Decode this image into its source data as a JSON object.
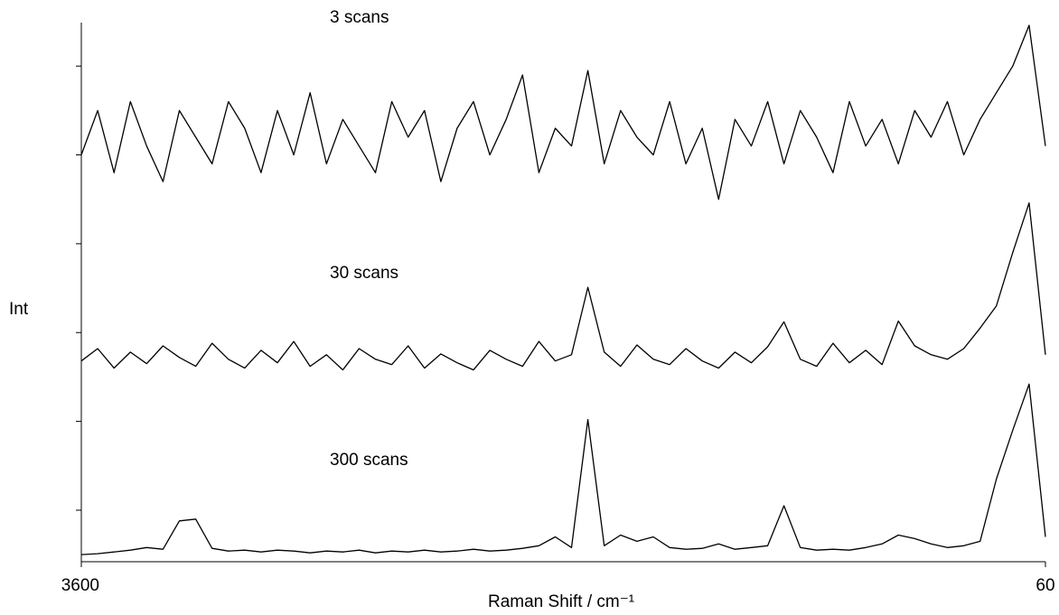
{
  "chart_data": {
    "type": "line",
    "xlabel": "Raman Shift / cm⁻¹",
    "ylabel": "Int",
    "xlim": [
      3600,
      60
    ],
    "xticks": [
      3600,
      60
    ],
    "ylim": [
      -0.58,
      5.49
    ],
    "yticks": [
      0,
      1,
      2,
      3,
      4,
      5
    ],
    "x": [
      3600,
      3540,
      3480,
      3420,
      3360,
      3300,
      3240,
      3180,
      3120,
      3060,
      3000,
      2940,
      2880,
      2820,
      2760,
      2700,
      2640,
      2580,
      2520,
      2460,
      2400,
      2340,
      2280,
      2220,
      2160,
      2100,
      2040,
      1980,
      1920,
      1860,
      1800,
      1740,
      1680,
      1620,
      1560,
      1500,
      1440,
      1380,
      1320,
      1260,
      1200,
      1140,
      1080,
      1020,
      960,
      900,
      840,
      780,
      720,
      660,
      600,
      540,
      480,
      420,
      360,
      300,
      240,
      180,
      120,
      60
    ],
    "series": [
      {
        "name": "3 scans",
        "color": "#000000",
        "values": [
          4.0,
          4.5,
          3.8,
          4.6,
          4.1,
          3.7,
          4.5,
          4.2,
          3.9,
          4.6,
          4.3,
          3.8,
          4.5,
          4.0,
          4.7,
          3.9,
          4.4,
          4.1,
          3.8,
          4.6,
          4.2,
          4.5,
          3.7,
          4.3,
          4.6,
          4.0,
          4.4,
          4.9,
          3.8,
          4.3,
          4.1,
          4.95,
          3.9,
          4.5,
          4.2,
          4.0,
          4.6,
          3.9,
          4.3,
          3.5,
          4.4,
          4.1,
          4.6,
          3.9,
          4.5,
          4.2,
          3.8,
          4.6,
          4.1,
          4.4,
          3.9,
          4.5,
          4.2,
          4.6,
          4.0,
          4.4,
          4.7,
          5.0,
          5.46,
          4.1
        ]
      },
      {
        "name": "30 scans",
        "color": "#000000",
        "values": [
          1.68,
          1.82,
          1.6,
          1.78,
          1.65,
          1.85,
          1.72,
          1.62,
          1.88,
          1.7,
          1.6,
          1.8,
          1.66,
          1.9,
          1.62,
          1.75,
          1.58,
          1.82,
          1.7,
          1.64,
          1.85,
          1.6,
          1.76,
          1.66,
          1.58,
          1.8,
          1.7,
          1.62,
          1.9,
          1.68,
          1.75,
          2.51,
          1.78,
          1.62,
          1.86,
          1.7,
          1.64,
          1.82,
          1.68,
          1.6,
          1.78,
          1.66,
          1.84,
          2.12,
          1.7,
          1.62,
          1.88,
          1.66,
          1.8,
          1.64,
          2.13,
          1.85,
          1.75,
          1.7,
          1.82,
          2.05,
          2.3,
          2.9,
          3.46,
          1.75
        ]
      },
      {
        "name": "300 scans",
        "color": "#000000",
        "values": [
          -0.5,
          -0.49,
          -0.47,
          -0.45,
          -0.42,
          -0.44,
          -0.12,
          -0.1,
          -0.43,
          -0.46,
          -0.45,
          -0.47,
          -0.45,
          -0.46,
          -0.48,
          -0.46,
          -0.47,
          -0.45,
          -0.48,
          -0.46,
          -0.47,
          -0.45,
          -0.47,
          -0.46,
          -0.44,
          -0.46,
          -0.45,
          -0.43,
          -0.4,
          -0.3,
          -0.42,
          1.02,
          -0.4,
          -0.28,
          -0.35,
          -0.3,
          -0.42,
          -0.44,
          -0.43,
          -0.38,
          -0.44,
          -0.42,
          -0.4,
          0.05,
          -0.42,
          -0.45,
          -0.44,
          -0.45,
          -0.42,
          -0.38,
          -0.28,
          -0.32,
          -0.38,
          -0.42,
          -0.4,
          -0.35,
          0.35,
          0.9,
          1.42,
          -0.3
        ]
      }
    ]
  }
}
